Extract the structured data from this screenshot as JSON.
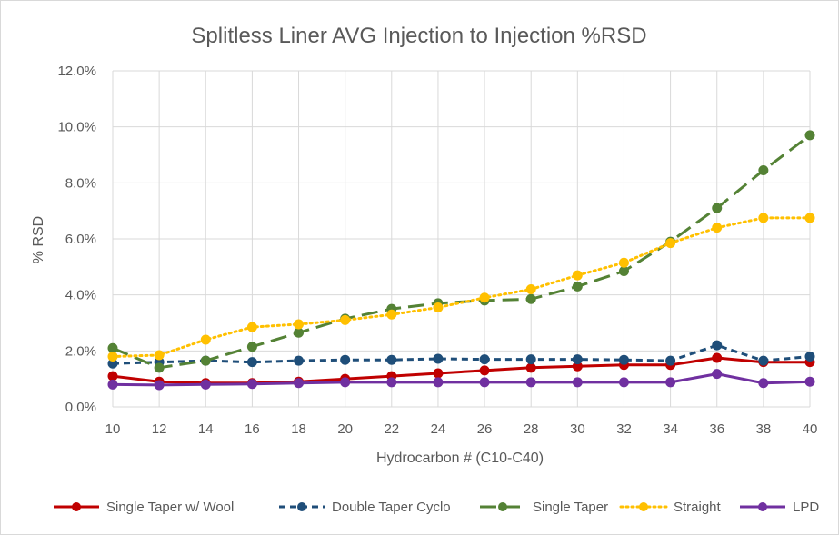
{
  "chart_data": {
    "type": "line",
    "title": "Splitless Liner AVG Injection to Injection %RSD",
    "xlabel": "Hydrocarbon # (C10-C40)",
    "ylabel": "% RSD",
    "x": [
      "10",
      "12",
      "14",
      "16",
      "18",
      "20",
      "22",
      "24",
      "26",
      "28",
      "30",
      "32",
      "34",
      "36",
      "38",
      "40"
    ],
    "ylim": [
      0,
      12
    ],
    "yticks": [
      "0.0%",
      "2.0%",
      "4.0%",
      "6.0%",
      "8.0%",
      "10.0%",
      "12.0%"
    ],
    "grid": "vertical and horizontal",
    "legend_position": "bottom",
    "series": [
      {
        "name": "Single Taper w/ Wool",
        "color": "#c00000",
        "dash": "solid",
        "values": [
          1.1,
          0.9,
          0.85,
          0.85,
          0.9,
          1.0,
          1.1,
          1.2,
          1.3,
          1.4,
          1.45,
          1.5,
          1.5,
          1.75,
          1.6,
          1.6
        ]
      },
      {
        "name": "Double Taper Cyclo",
        "color": "#1f4e79",
        "dash": "short-dash",
        "values": [
          1.55,
          1.6,
          1.65,
          1.6,
          1.65,
          1.68,
          1.68,
          1.72,
          1.7,
          1.7,
          1.7,
          1.68,
          1.65,
          2.2,
          1.65,
          1.8
        ]
      },
      {
        "name": "Single Taper",
        "color": "#548235",
        "dash": "long-dash",
        "values": [
          2.1,
          1.4,
          1.65,
          2.15,
          2.65,
          3.15,
          3.5,
          3.7,
          3.8,
          3.85,
          4.3,
          4.85,
          5.9,
          7.1,
          8.45,
          9.7
        ]
      },
      {
        "name": "Straight",
        "color": "#ffc000",
        "dash": "dotted",
        "values": [
          1.8,
          1.85,
          2.4,
          2.85,
          2.95,
          3.1,
          3.3,
          3.55,
          3.9,
          4.2,
          4.7,
          5.15,
          5.85,
          6.4,
          6.75,
          6.75
        ]
      },
      {
        "name": "LPD",
        "color": "#7030a0",
        "dash": "solid",
        "values": [
          0.8,
          0.78,
          0.8,
          0.82,
          0.85,
          0.88,
          0.88,
          0.88,
          0.88,
          0.88,
          0.88,
          0.88,
          0.88,
          1.18,
          0.85,
          0.9
        ]
      }
    ]
  }
}
